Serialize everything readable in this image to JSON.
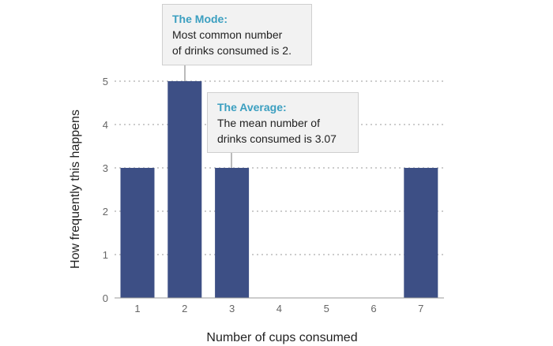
{
  "chart_data": {
    "type": "bar",
    "categories": [
      "1",
      "2",
      "3",
      "4",
      "5",
      "6",
      "7"
    ],
    "values": [
      3,
      5,
      3,
      0,
      0,
      0,
      3
    ],
    "xlabel": "Number of cups consumed",
    "ylabel": "How frequently this happens",
    "ylim": [
      0,
      5
    ],
    "yticks": [
      0,
      1,
      2,
      3,
      4,
      5
    ],
    "grid": "dotted horizontal",
    "bar_color": "#3d4f85",
    "annotations": [
      {
        "id": "mode",
        "title": "The Mode:",
        "text": "Most common number\nof drinks consumed is 2.",
        "target_category": "2"
      },
      {
        "id": "average",
        "title": "The Average:",
        "text": "The mean number of\ndrinks consumed is 3.07",
        "target_category": "3"
      }
    ]
  },
  "colors": {
    "bar": "#3d4f85",
    "grid": "#cccccc",
    "callout_title": "#3b9fc0",
    "callout_bg": "#f2f2f2"
  }
}
